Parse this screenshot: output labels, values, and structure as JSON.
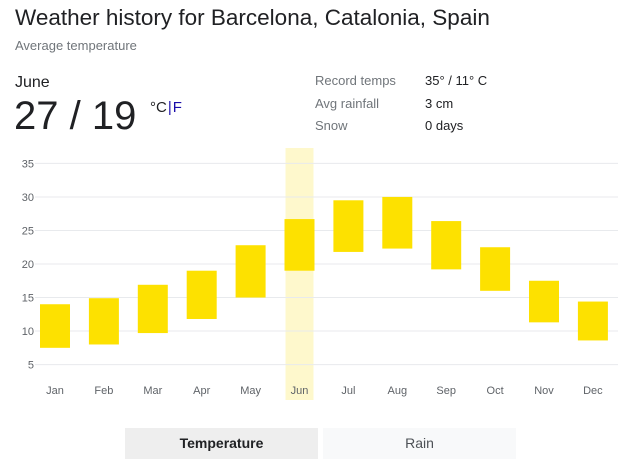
{
  "header": {
    "title": "Weather history for Barcelona, Catalonia, Spain",
    "subtitle": "Average temperature"
  },
  "summary": {
    "month": "June",
    "temps": "27 / 19",
    "unit_c": "°C",
    "unit_sep": "|",
    "unit_f": "F"
  },
  "stats": [
    {
      "label": "Record temps",
      "value": "35° / 11° C"
    },
    {
      "label": "Avg rainfall",
      "value": "3 cm"
    },
    {
      "label": "Snow",
      "value": "0 days"
    }
  ],
  "tabs": {
    "temperature": "Temperature",
    "rain": "Rain"
  },
  "colors": {
    "bar": "#fde100",
    "highlight": "#fef8cc",
    "grid": "#e8eaed",
    "tick": "#5f6368"
  },
  "chart_data": {
    "type": "bar",
    "categories": [
      "Jan",
      "Feb",
      "Mar",
      "Apr",
      "May",
      "Jun",
      "Jul",
      "Aug",
      "Sep",
      "Oct",
      "Nov",
      "Dec"
    ],
    "series": [
      {
        "low": [
          7.5,
          8,
          9.7,
          11.8,
          15,
          19,
          21.8,
          22.3,
          19.2,
          16,
          11.3,
          8.6
        ],
        "high": [
          14,
          14.9,
          16.9,
          19,
          22.8,
          26.7,
          29.5,
          30,
          26.4,
          22.5,
          17.5,
          14.4
        ]
      }
    ],
    "yticks": [
      5,
      10,
      15,
      20,
      25,
      30,
      35
    ],
    "ylim": [
      3,
      37
    ],
    "highlighted": "Jun",
    "legend": "none",
    "grid": true
  }
}
